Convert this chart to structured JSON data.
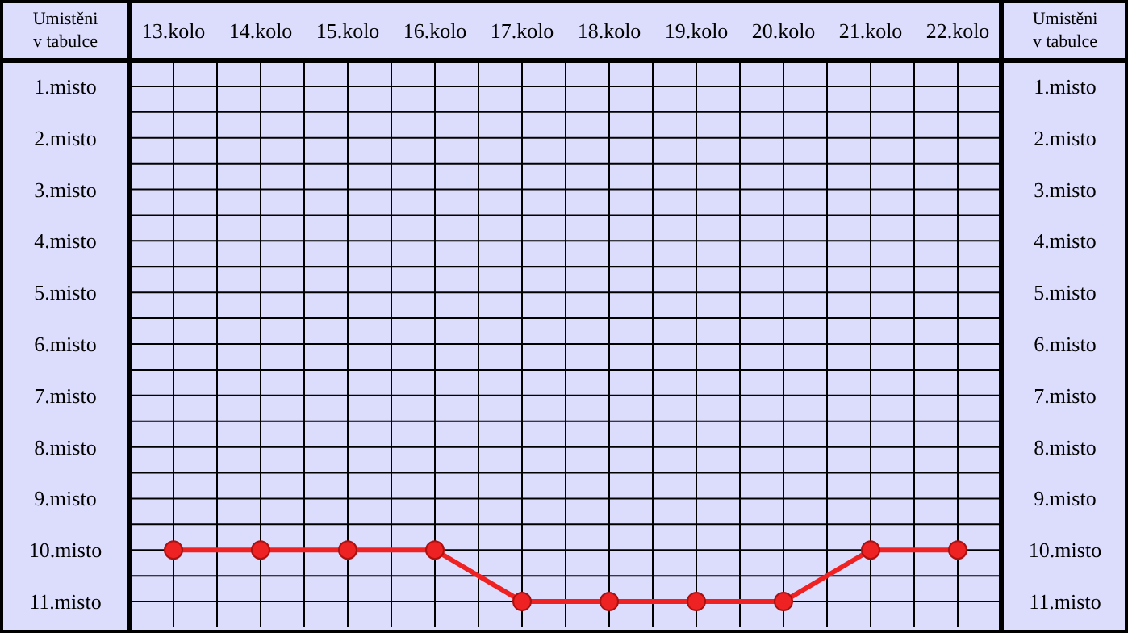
{
  "chart_data": {
    "type": "line",
    "ylabel": "Umistěni\nv tabulce",
    "y2label": "Umistěni\nv tabulce",
    "categories": [
      "13.kolo",
      "14.kolo",
      "15.kolo",
      "16.kolo",
      "17.kolo",
      "18.kolo",
      "19.kolo",
      "20.kolo",
      "21.kolo",
      "22.kolo"
    ],
    "series": [
      {
        "color": "#ee2222",
        "values": [
          10,
          10,
          10,
          10,
          11,
          11,
          11,
          11,
          10,
          10
        ]
      }
    ],
    "ylim": [
      11.5,
      0.5
    ],
    "yticks": [
      {
        "value": 1,
        "label": "1.misto"
      },
      {
        "value": 2,
        "label": "2.misto"
      },
      {
        "value": 3,
        "label": "3.misto"
      },
      {
        "value": 4,
        "label": "4.misto"
      },
      {
        "value": 5,
        "label": "5.misto"
      },
      {
        "value": 6,
        "label": "6.misto"
      },
      {
        "value": 7,
        "label": "7.misto"
      },
      {
        "value": 8,
        "label": "8.misto"
      },
      {
        "value": 9,
        "label": "9.misto"
      },
      {
        "value": 10,
        "label": "10.misto"
      },
      {
        "value": 11,
        "label": "11.misto"
      }
    ],
    "y2lim": [
      11.5,
      0.5
    ],
    "y2ticks": [
      {
        "value": 1,
        "label": "1.misto"
      },
      {
        "value": 2,
        "label": "2.misto"
      },
      {
        "value": 3,
        "label": "3.misto"
      },
      {
        "value": 4,
        "label": "4.misto"
      },
      {
        "value": 5,
        "label": "5.misto"
      },
      {
        "value": 6,
        "label": "6.misto"
      },
      {
        "value": 7,
        "label": "7.misto"
      },
      {
        "value": 8,
        "label": "8.misto"
      },
      {
        "value": 9,
        "label": "9.misto"
      },
      {
        "value": 10,
        "label": "10.misto"
      },
      {
        "value": 11,
        "label": "11.misto"
      }
    ],
    "grid": true,
    "marker": "circle",
    "line_style": "solid"
  }
}
